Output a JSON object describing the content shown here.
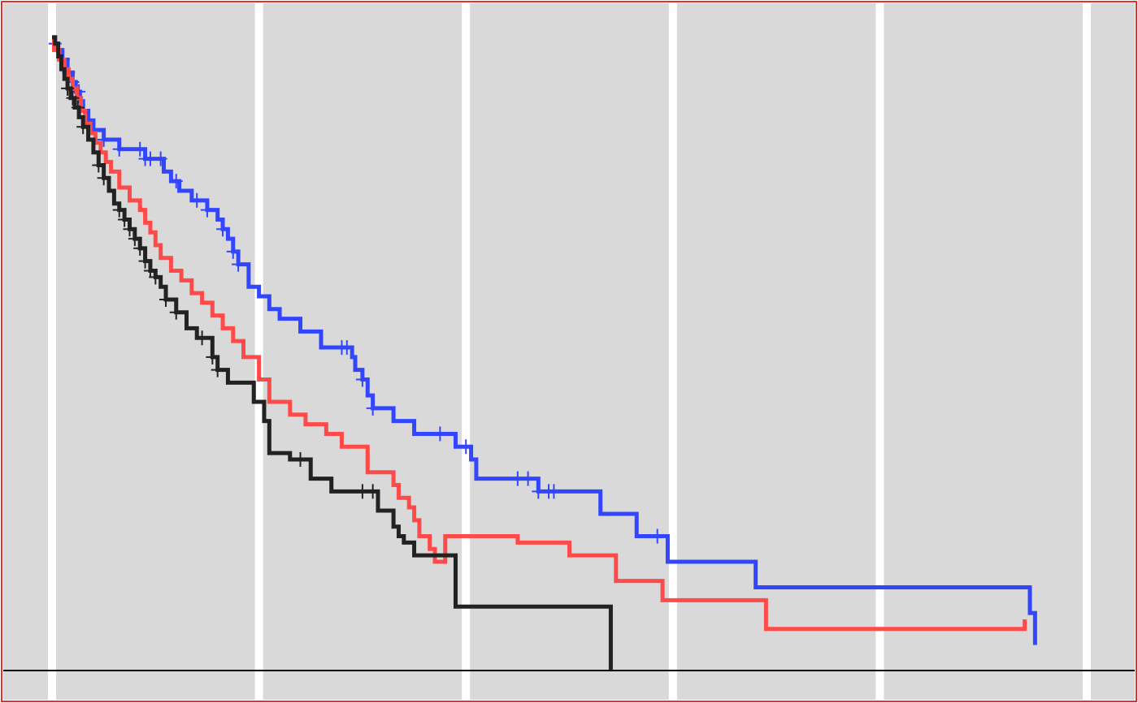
{
  "chart_data": {
    "type": "line",
    "step": true,
    "title": "",
    "xlabel": "",
    "ylabel": "",
    "xlim": [
      0,
      105
    ],
    "ylim": [
      0,
      1
    ],
    "x_gridlines": [
      0,
      20,
      40,
      60,
      80,
      100
    ],
    "grid": "vertical",
    "legend": "none",
    "colors": {
      "panel_background": "#d9d9d9",
      "gridline": "#ffffff",
      "border": "#e03030",
      "baseline": "#000000"
    },
    "series": [
      {
        "color": "#3346ff",
        "x": [
          0,
          0.5,
          1.0,
          1.5,
          2.0,
          2.3,
          2.7,
          3.0,
          3.5,
          4.0,
          5.0,
          6.5,
          9.0,
          10.8,
          11.5,
          12.3,
          13.5,
          15.0,
          16.0,
          16.5,
          17.0,
          17.5,
          18.0,
          19.0,
          20.0,
          21.0,
          22.0,
          24.0,
          26.0,
          29.0,
          29.3,
          30.0,
          30.5,
          31.0,
          33.0,
          35.0,
          39.0,
          40.5,
          41.0,
          47.0,
          53.0,
          56.5,
          59.5,
          68.0,
          94.5,
          95.0
        ],
        "y": [
          0.98,
          0.97,
          0.955,
          0.935,
          0.92,
          0.905,
          0.89,
          0.875,
          0.86,
          0.845,
          0.83,
          0.815,
          0.8,
          0.78,
          0.765,
          0.75,
          0.735,
          0.72,
          0.705,
          0.69,
          0.675,
          0.655,
          0.635,
          0.6,
          0.585,
          0.565,
          0.55,
          0.53,
          0.505,
          0.49,
          0.47,
          0.455,
          0.43,
          0.41,
          0.39,
          0.37,
          0.35,
          0.33,
          0.3,
          0.28,
          0.245,
          0.21,
          0.17,
          0.13,
          0.09,
          0.04
        ],
        "censor_x": [
          0.3,
          1.1,
          1.6,
          2.0,
          2.6,
          3.5,
          5.0,
          6.5,
          8.5,
          9.0,
          9.5,
          10.5,
          12.0,
          14.0,
          15.0,
          16.5,
          17.5,
          18.0,
          28.0,
          28.5,
          30.0,
          31.0,
          37.5,
          40.0,
          45.0,
          46.0,
          47.0,
          48.0,
          48.5,
          58.5
        ]
      },
      {
        "color": "#ff4a4a",
        "x": [
          0,
          0.2,
          0.7,
          1.2,
          1.6,
          2.0,
          2.4,
          2.8,
          3.2,
          3.7,
          4.2,
          4.7,
          5.2,
          5.7,
          6.5,
          7.5,
          8.5,
          9.0,
          9.5,
          10.0,
          10.5,
          11.5,
          12.5,
          13.5,
          14.5,
          15.5,
          16.5,
          17.5,
          18.5,
          20.0,
          21.0,
          23.0,
          24.5,
          26.5,
          28.0,
          30.5,
          33.0,
          33.5,
          34.5,
          35.0,
          35.5,
          36.5,
          37.0,
          38.0,
          45.0,
          50.0,
          54.5,
          59.0,
          69.0,
          94.0
        ],
        "y": [
          0.985,
          0.97,
          0.955,
          0.94,
          0.925,
          0.91,
          0.895,
          0.875,
          0.855,
          0.84,
          0.825,
          0.81,
          0.795,
          0.78,
          0.755,
          0.735,
          0.72,
          0.7,
          0.685,
          0.665,
          0.645,
          0.625,
          0.61,
          0.59,
          0.575,
          0.555,
          0.535,
          0.515,
          0.49,
          0.455,
          0.42,
          0.4,
          0.385,
          0.37,
          0.35,
          0.31,
          0.29,
          0.27,
          0.255,
          0.235,
          0.21,
          0.19,
          0.17,
          0.21,
          0.2,
          0.18,
          0.14,
          0.11,
          0.065,
          0.08
        ]
      },
      {
        "color": "#222222",
        "x": [
          0,
          0.3,
          0.6,
          0.9,
          1.2,
          1.5,
          1.8,
          2.2,
          2.6,
          3.0,
          3.5,
          4.0,
          4.5,
          5.0,
          5.5,
          6.0,
          6.5,
          7.0,
          7.5,
          8.0,
          8.5,
          9.0,
          9.5,
          10.0,
          10.5,
          11.0,
          12.0,
          13.0,
          14.0,
          15.5,
          16.0,
          17.0,
          19.5,
          20.5,
          21.0,
          23.0,
          25.0,
          27.0,
          31.5,
          33.0,
          33.5,
          34.0,
          35.0,
          39.0,
          54.0
        ],
        "y": [
          0.99,
          0.98,
          0.96,
          0.94,
          0.925,
          0.91,
          0.895,
          0.88,
          0.865,
          0.85,
          0.83,
          0.81,
          0.79,
          0.77,
          0.75,
          0.73,
          0.72,
          0.705,
          0.69,
          0.675,
          0.66,
          0.64,
          0.625,
          0.615,
          0.6,
          0.58,
          0.56,
          0.535,
          0.52,
          0.49,
          0.47,
          0.45,
          0.42,
          0.39,
          0.34,
          0.33,
          0.3,
          0.28,
          0.25,
          0.225,
          0.21,
          0.2,
          0.18,
          0.1,
          0.0
        ],
        "censor_x": [
          1.5,
          2.0,
          2.5,
          3.0,
          4.5,
          5.0,
          6.5,
          7.0,
          7.5,
          8.0,
          8.5,
          9.0,
          9.5,
          10.0,
          11.0,
          12.0,
          14.5,
          15.5,
          16.0,
          24.0,
          30.0,
          31.0
        ]
      }
    ]
  }
}
